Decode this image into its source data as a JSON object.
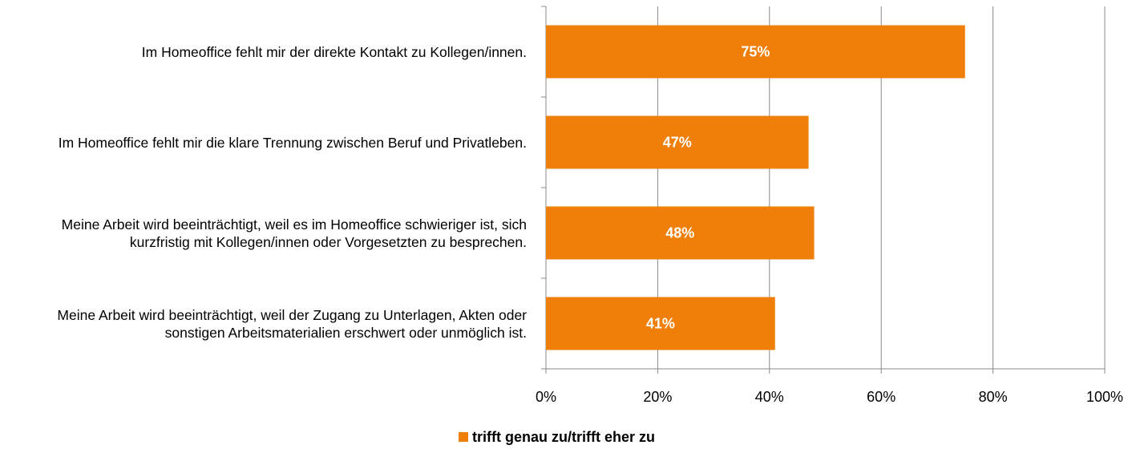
{
  "chart_data": {
    "type": "barh",
    "categories": [
      "Im Homeoffice fehlt mir der direkte Kontakt zu Kollegen/innen.",
      "Im Homeoffice fehlt mir die klare Trennung zwischen Beruf und Privatleben.",
      "Meine Arbeit wird beeinträchtigt, weil es im Homeoffice schwieriger ist, sich kurzfristig mit Kollegen/innen oder Vorgesetzten zu besprechen.",
      "Meine Arbeit wird beeinträchtigt, weil der Zugang zu Unterlagen, Akten oder sonstigen Arbeitsmaterialien erschwert oder unmöglich ist."
    ],
    "series": [
      {
        "name": "trifft genau zu/trifft eher zu",
        "color": "#f07f09",
        "values": [
          75,
          47,
          48,
          41
        ],
        "value_labels": [
          "75%",
          "47%",
          "48%",
          "41%"
        ]
      }
    ],
    "xlim": [
      0,
      100
    ],
    "xticks": [
      {
        "value": 0,
        "label": "0%"
      },
      {
        "value": 20,
        "label": "20%"
      },
      {
        "value": 40,
        "label": "40%"
      },
      {
        "value": 60,
        "label": "60%"
      },
      {
        "value": 80,
        "label": "80%"
      },
      {
        "value": 100,
        "label": "100%"
      }
    ],
    "grid": true,
    "legend": "bottom"
  }
}
